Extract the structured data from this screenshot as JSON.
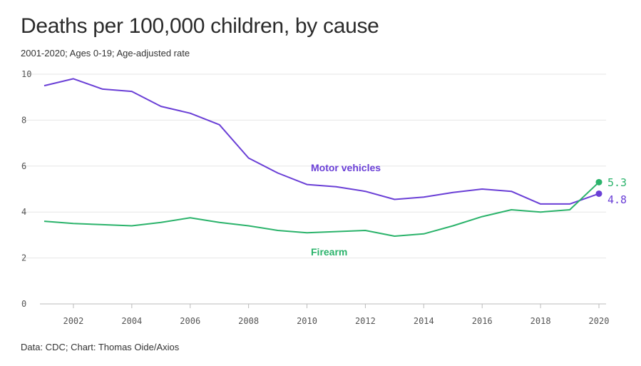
{
  "title": "Deaths per 100,000 children, by cause",
  "subtitle": "2001-2020; Ages 0-19; Age-adjusted rate",
  "source": "Data: CDC; Chart: Thomas Oide/Axios",
  "colors": {
    "motor": "#6a3fd6",
    "firearm": "#2bb36b",
    "grid": "#e6e6e6",
    "axis": "#bbbbbb",
    "tick": "#555555"
  },
  "chart_data": {
    "type": "line",
    "x": [
      2001,
      2002,
      2003,
      2004,
      2005,
      2006,
      2007,
      2008,
      2009,
      2010,
      2011,
      2012,
      2013,
      2014,
      2015,
      2016,
      2017,
      2018,
      2019,
      2020
    ],
    "series": [
      {
        "name": "Motor vehicles",
        "color": "#6a3fd6",
        "values": [
          9.5,
          9.8,
          9.35,
          9.25,
          8.6,
          8.3,
          7.8,
          6.35,
          5.7,
          5.2,
          5.1,
          4.9,
          4.55,
          4.65,
          4.85,
          5.0,
          4.9,
          4.35,
          4.35,
          4.8
        ],
        "end_label": "4.8"
      },
      {
        "name": "Firearm",
        "color": "#2bb36b",
        "values": [
          3.6,
          3.5,
          3.45,
          3.4,
          3.55,
          3.75,
          3.55,
          3.4,
          3.2,
          3.1,
          3.15,
          3.2,
          2.95,
          3.05,
          3.4,
          3.8,
          4.1,
          4.0,
          4.1,
          5.3
        ],
        "end_label": "5.3"
      }
    ],
    "xlim": [
      2001,
      2020
    ],
    "ylim": [
      0,
      10
    ],
    "yticks": [
      0,
      2,
      4,
      6,
      8,
      10
    ],
    "xticks": [
      2002,
      2004,
      2006,
      2008,
      2010,
      2012,
      2014,
      2016,
      2018,
      2020
    ],
    "grid": true
  }
}
